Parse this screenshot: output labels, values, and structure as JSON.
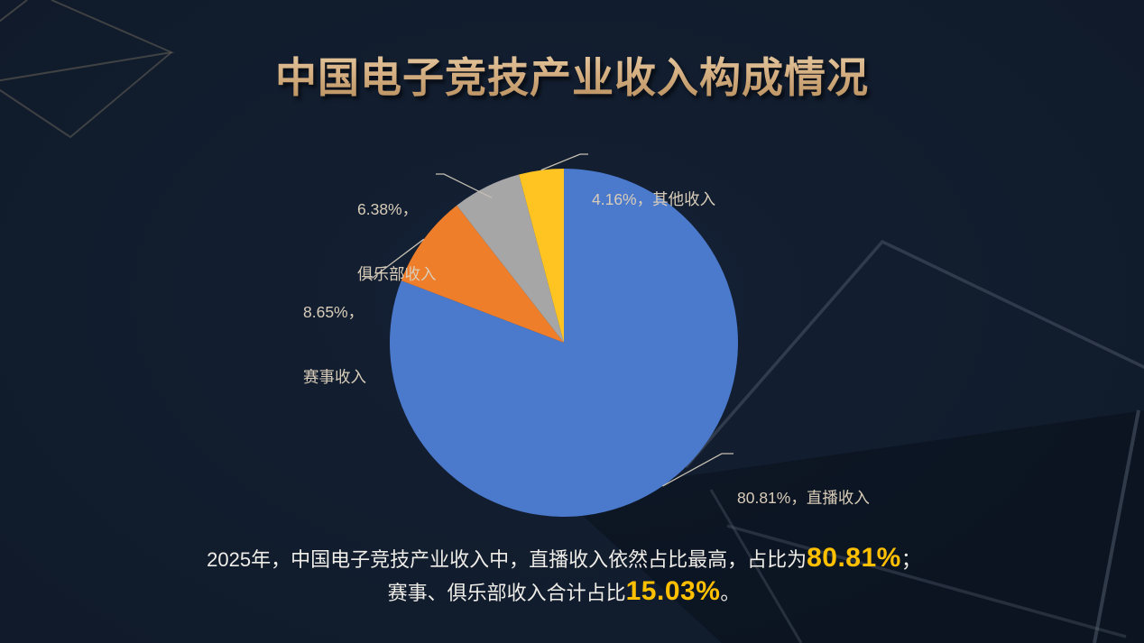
{
  "slide": {
    "title": "中国电子竞技产业收入构成情况"
  },
  "colors": {
    "background": "#111C2D",
    "title_gold": "#D6B184",
    "highlight_yellow": "#FFC000",
    "body_text": "#EFEDE8",
    "data_label_text": "#D9CDB9",
    "leader_line": "#C6BFB2"
  },
  "chart_data": {
    "type": "pie",
    "title": "中国电子竞技产业收入构成情况",
    "unit": "percent",
    "start_angle_deg": 0,
    "direction": "clockwise",
    "legend": "none",
    "data_labels": "outside-with-leader-lines",
    "categories": [
      "直播收入",
      "赛事收入",
      "俱乐部收入",
      "其他收入"
    ],
    "values": [
      80.81,
      8.65,
      6.38,
      4.16
    ],
    "slices": [
      {
        "name": "直播收入",
        "value": 80.81,
        "color": "#4B79CC",
        "label_lines": [
          "80.81%，直播收入"
        ]
      },
      {
        "name": "赛事收入",
        "value": 8.65,
        "color": "#EF7E2B",
        "label_lines": [
          "8.65%，",
          "赛事收入"
        ]
      },
      {
        "name": "俱乐部收入",
        "value": 6.38,
        "color": "#A6A6A6",
        "label_lines": [
          "6.38%，",
          "俱乐部收入"
        ]
      },
      {
        "name": "其他收入",
        "value": 4.16,
        "color": "#FFC422",
        "label_lines": [
          "4.16%，其他收入"
        ]
      }
    ]
  },
  "summary": {
    "line1": {
      "prefix": "2025年，中国电子竞技产业收入中，直播收入依然占比最高，占比为",
      "highlight": "80.81%",
      "suffix": "；"
    },
    "line2": {
      "prefix": "赛事、俱乐部收入合计占比",
      "highlight": "15.03%",
      "suffix": "。"
    }
  }
}
